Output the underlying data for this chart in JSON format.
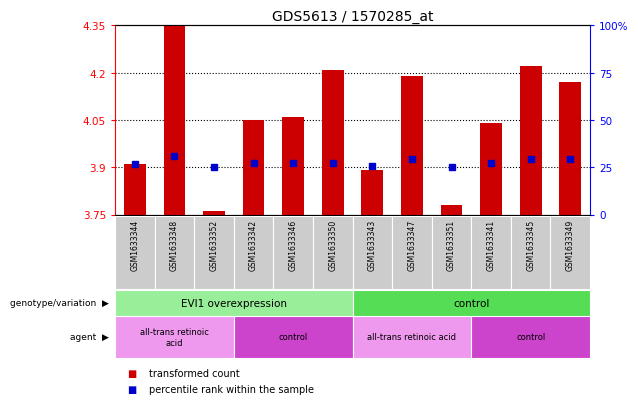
{
  "title": "GDS5613 / 1570285_at",
  "samples": [
    "GSM1633344",
    "GSM1633348",
    "GSM1633352",
    "GSM1633342",
    "GSM1633346",
    "GSM1633350",
    "GSM1633343",
    "GSM1633347",
    "GSM1633351",
    "GSM1633341",
    "GSM1633345",
    "GSM1633349"
  ],
  "bar_values": [
    3.91,
    4.35,
    3.76,
    4.05,
    4.06,
    4.21,
    3.89,
    4.19,
    3.78,
    4.04,
    4.22,
    4.17
  ],
  "percentile_values": [
    3.91,
    3.935,
    3.9,
    3.915,
    3.915,
    3.915,
    3.905,
    3.925,
    3.9,
    3.915,
    3.925,
    3.925
  ],
  "ylim": [
    3.75,
    4.35
  ],
  "y_ticks": [
    3.75,
    3.9,
    4.05,
    4.2,
    4.35
  ],
  "y2_ticks": [
    0,
    25,
    50,
    75,
    100
  ],
  "bar_color": "#cc0000",
  "percentile_color": "#0000cc",
  "bar_bottom": 3.75,
  "genotype_groups": [
    {
      "label": "EVI1 overexpression",
      "start": 0,
      "end": 6,
      "color": "#99ee99"
    },
    {
      "label": "control",
      "start": 6,
      "end": 12,
      "color": "#55dd55"
    }
  ],
  "agent_groups": [
    {
      "label": "all-trans retinoic\nacid",
      "start": 0,
      "end": 3,
      "color": "#ee99ee"
    },
    {
      "label": "control",
      "start": 3,
      "end": 6,
      "color": "#cc44cc"
    },
    {
      "label": "all-trans retinoic acid",
      "start": 6,
      "end": 9,
      "color": "#ee99ee"
    },
    {
      "label": "control",
      "start": 9,
      "end": 12,
      "color": "#cc44cc"
    }
  ],
  "legend_items": [
    {
      "label": "transformed count",
      "color": "#cc0000"
    },
    {
      "label": "percentile rank within the sample",
      "color": "#0000cc"
    }
  ]
}
